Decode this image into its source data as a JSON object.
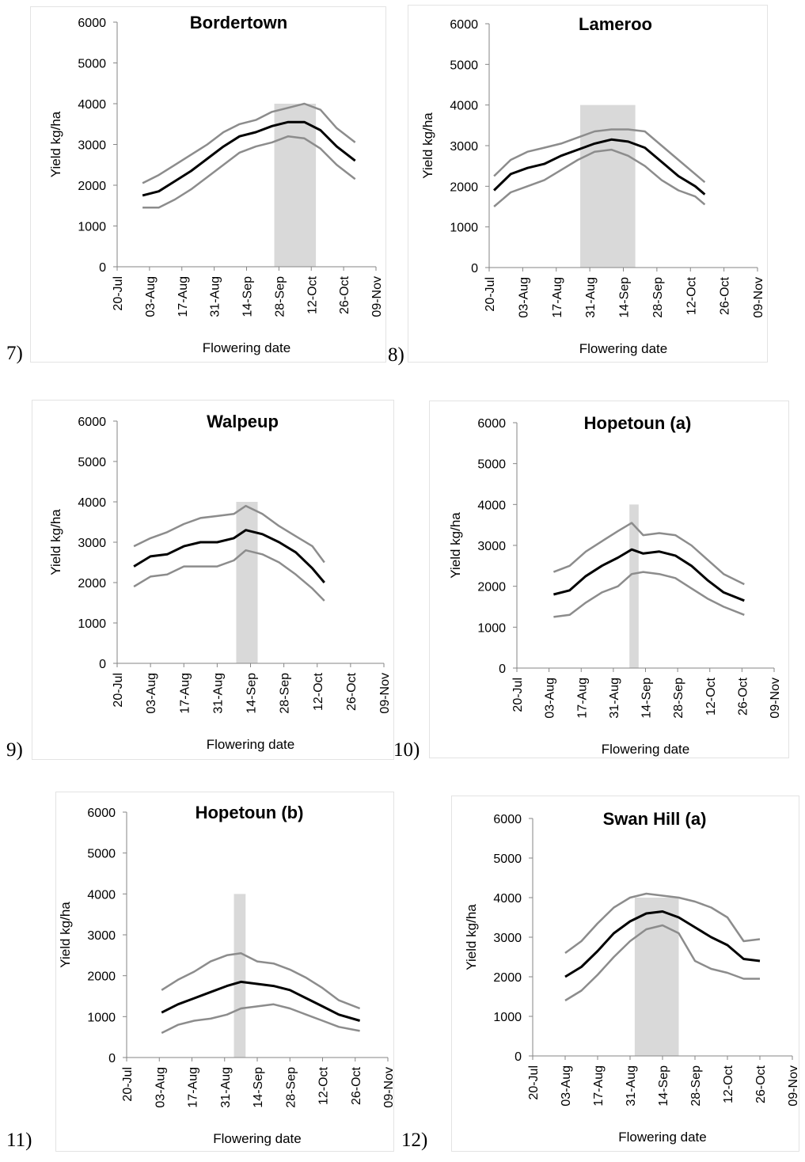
{
  "figure": {
    "colors": {
      "mean": "#000000",
      "bounds": "#8c8c8c",
      "window": "#d9d9d9"
    }
  },
  "chart_data": [
    {
      "type": "line",
      "panel_label": "7)",
      "title": "Bordertown",
      "xlabel": "Flowering date",
      "ylabel": "Yield kg/ha",
      "ylim": [
        0,
        6000
      ],
      "yticks": [
        0,
        1000,
        2000,
        3000,
        4000,
        5000,
        6000
      ],
      "xticks": [
        "20-Jul",
        "03-Aug",
        "17-Aug",
        "31-Aug",
        "14-Sep",
        "28-Sep",
        "12-Oct",
        "26-Oct",
        "09-Nov"
      ],
      "shaded_window": [
        "2024-09-26",
        "2024-10-14"
      ],
      "series": [
        {
          "role": "upper",
          "x": [
            "2024-07-31",
            "2024-08-07",
            "2024-08-14",
            "2024-08-21",
            "2024-08-28",
            "2024-09-04",
            "2024-09-11",
            "2024-09-18",
            "2024-09-25",
            "2024-10-02",
            "2024-10-09",
            "2024-10-16",
            "2024-10-23",
            "2024-10-31"
          ],
          "values": [
            2050,
            2250,
            2500,
            2750,
            3000,
            3300,
            3500,
            3600,
            3800,
            3900,
            4000,
            3850,
            3400,
            3050
          ]
        },
        {
          "role": "mean",
          "x": [
            "2024-07-31",
            "2024-08-07",
            "2024-08-14",
            "2024-08-21",
            "2024-08-28",
            "2024-09-04",
            "2024-09-11",
            "2024-09-18",
            "2024-09-25",
            "2024-10-02",
            "2024-10-09",
            "2024-10-16",
            "2024-10-23",
            "2024-10-31"
          ],
          "values": [
            1750,
            1850,
            2100,
            2350,
            2650,
            2950,
            3200,
            3300,
            3450,
            3550,
            3550,
            3350,
            2950,
            2600
          ]
        },
        {
          "role": "lower",
          "x": [
            "2024-07-31",
            "2024-08-07",
            "2024-08-14",
            "2024-08-21",
            "2024-08-28",
            "2024-09-04",
            "2024-09-11",
            "2024-09-18",
            "2024-09-25",
            "2024-10-02",
            "2024-10-09",
            "2024-10-16",
            "2024-10-23",
            "2024-10-31"
          ],
          "values": [
            1450,
            1450,
            1650,
            1900,
            2200,
            2500,
            2800,
            2950,
            3050,
            3200,
            3150,
            2900,
            2500,
            2150
          ]
        }
      ]
    },
    {
      "type": "line",
      "panel_label": "8)",
      "title": "Lameroo",
      "xlabel": "Flowering date",
      "ylabel": "Yield kg/ha",
      "ylim": [
        0,
        6000
      ],
      "yticks": [
        0,
        1000,
        2000,
        3000,
        4000,
        5000,
        6000
      ],
      "xticks": [
        "20-Jul",
        "03-Aug",
        "17-Aug",
        "31-Aug",
        "14-Sep",
        "28-Sep",
        "12-Oct",
        "26-Oct",
        "09-Nov"
      ],
      "shaded_window": [
        "2024-08-27",
        "2024-09-19"
      ],
      "series": [
        {
          "role": "upper",
          "x": [
            "2024-07-22",
            "2024-07-29",
            "2024-08-05",
            "2024-08-12",
            "2024-08-19",
            "2024-08-26",
            "2024-09-02",
            "2024-09-09",
            "2024-09-16",
            "2024-09-23",
            "2024-09-30",
            "2024-10-07",
            "2024-10-14",
            "2024-10-18"
          ],
          "values": [
            2250,
            2650,
            2850,
            2950,
            3050,
            3200,
            3350,
            3400,
            3400,
            3350,
            3000,
            2650,
            2300,
            2100
          ]
        },
        {
          "role": "mean",
          "x": [
            "2024-07-22",
            "2024-07-29",
            "2024-08-05",
            "2024-08-12",
            "2024-08-19",
            "2024-08-26",
            "2024-09-02",
            "2024-09-09",
            "2024-09-16",
            "2024-09-23",
            "2024-09-30",
            "2024-10-07",
            "2024-10-14",
            "2024-10-18"
          ],
          "values": [
            1900,
            2300,
            2450,
            2550,
            2750,
            2900,
            3050,
            3150,
            3100,
            2950,
            2600,
            2250,
            2000,
            1800
          ]
        },
        {
          "role": "lower",
          "x": [
            "2024-07-22",
            "2024-07-29",
            "2024-08-05",
            "2024-08-12",
            "2024-08-19",
            "2024-08-26",
            "2024-09-02",
            "2024-09-09",
            "2024-09-16",
            "2024-09-23",
            "2024-09-30",
            "2024-10-07",
            "2024-10-14",
            "2024-10-18"
          ],
          "values": [
            1500,
            1850,
            2000,
            2150,
            2400,
            2650,
            2850,
            2900,
            2750,
            2500,
            2150,
            1900,
            1750,
            1550
          ]
        }
      ]
    },
    {
      "type": "line",
      "panel_label": "9)",
      "title": "Walpeup",
      "xlabel": "Flowering date",
      "ylabel": "Yield kg/ha",
      "ylim": [
        0,
        6000
      ],
      "yticks": [
        0,
        1000,
        2000,
        3000,
        4000,
        5000,
        6000
      ],
      "xticks": [
        "20-Jul",
        "03-Aug",
        "17-Aug",
        "31-Aug",
        "14-Sep",
        "28-Sep",
        "12-Oct",
        "26-Oct",
        "09-Nov"
      ],
      "shaded_window": [
        "2024-09-08",
        "2024-09-17"
      ],
      "series": [
        {
          "role": "upper",
          "x": [
            "2024-07-27",
            "2024-08-03",
            "2024-08-10",
            "2024-08-17",
            "2024-08-24",
            "2024-08-31",
            "2024-09-07",
            "2024-09-12",
            "2024-09-19",
            "2024-09-26",
            "2024-10-03",
            "2024-10-10",
            "2024-10-15"
          ],
          "values": [
            2900,
            3100,
            3250,
            3450,
            3600,
            3650,
            3700,
            3900,
            3700,
            3400,
            3150,
            2900,
            2500
          ]
        },
        {
          "role": "mean",
          "x": [
            "2024-07-27",
            "2024-08-03",
            "2024-08-10",
            "2024-08-17",
            "2024-08-24",
            "2024-08-31",
            "2024-09-07",
            "2024-09-12",
            "2024-09-19",
            "2024-09-26",
            "2024-10-03",
            "2024-10-10",
            "2024-10-15"
          ],
          "values": [
            2400,
            2650,
            2700,
            2900,
            3000,
            3000,
            3100,
            3300,
            3200,
            3000,
            2750,
            2350,
            2000
          ]
        },
        {
          "role": "lower",
          "x": [
            "2024-07-27",
            "2024-08-03",
            "2024-08-10",
            "2024-08-17",
            "2024-08-24",
            "2024-08-31",
            "2024-09-07",
            "2024-09-12",
            "2024-09-19",
            "2024-09-26",
            "2024-10-03",
            "2024-10-10",
            "2024-10-15"
          ],
          "values": [
            1900,
            2150,
            2200,
            2400,
            2400,
            2400,
            2550,
            2800,
            2700,
            2500,
            2200,
            1850,
            1550
          ]
        }
      ]
    },
    {
      "type": "line",
      "panel_label": "10)",
      "title": "Hopetoun (a)",
      "xlabel": "Flowering date",
      "ylabel": "Yield kg/ha",
      "ylim": [
        0,
        6000
      ],
      "yticks": [
        0,
        1000,
        2000,
        3000,
        4000,
        5000,
        6000
      ],
      "xticks": [
        "20-Jul",
        "03-Aug",
        "17-Aug",
        "31-Aug",
        "14-Sep",
        "28-Sep",
        "12-Oct",
        "26-Oct",
        "09-Nov"
      ],
      "shaded_window": [
        "2024-09-07",
        "2024-09-11"
      ],
      "series": [
        {
          "role": "upper",
          "x": [
            "2024-08-05",
            "2024-08-12",
            "2024-08-19",
            "2024-08-26",
            "2024-09-02",
            "2024-09-08",
            "2024-09-13",
            "2024-09-20",
            "2024-09-27",
            "2024-10-04",
            "2024-10-11",
            "2024-10-18",
            "2024-10-27"
          ],
          "values": [
            2350,
            2500,
            2850,
            3100,
            3350,
            3550,
            3250,
            3300,
            3250,
            3000,
            2650,
            2300,
            2050
          ]
        },
        {
          "role": "mean",
          "x": [
            "2024-08-05",
            "2024-08-12",
            "2024-08-19",
            "2024-08-26",
            "2024-09-02",
            "2024-09-08",
            "2024-09-13",
            "2024-09-20",
            "2024-09-27",
            "2024-10-04",
            "2024-10-11",
            "2024-10-18",
            "2024-10-27"
          ],
          "values": [
            1800,
            1900,
            2250,
            2500,
            2700,
            2900,
            2800,
            2850,
            2750,
            2500,
            2150,
            1850,
            1650
          ]
        },
        {
          "role": "lower",
          "x": [
            "2024-08-05",
            "2024-08-12",
            "2024-08-19",
            "2024-08-26",
            "2024-09-02",
            "2024-09-08",
            "2024-09-13",
            "2024-09-20",
            "2024-09-27",
            "2024-10-04",
            "2024-10-11",
            "2024-10-18",
            "2024-10-27"
          ],
          "values": [
            1250,
            1300,
            1600,
            1850,
            2000,
            2300,
            2350,
            2300,
            2200,
            1950,
            1700,
            1500,
            1300
          ]
        }
      ]
    },
    {
      "type": "line",
      "panel_label": "11)",
      "title": "Hopetoun (b)",
      "xlabel": "Flowering date",
      "ylabel": "Yield kg/ha",
      "ylim": [
        0,
        6000
      ],
      "yticks": [
        0,
        1000,
        2000,
        3000,
        4000,
        5000,
        6000
      ],
      "xticks": [
        "20-Jul",
        "03-Aug",
        "17-Aug",
        "31-Aug",
        "14-Sep",
        "28-Sep",
        "12-Oct",
        "26-Oct",
        "09-Nov"
      ],
      "shaded_window": [
        "2024-09-04",
        "2024-09-09"
      ],
      "series": [
        {
          "role": "upper",
          "x": [
            "2024-08-04",
            "2024-08-11",
            "2024-08-18",
            "2024-08-25",
            "2024-09-01",
            "2024-09-07",
            "2024-09-14",
            "2024-09-21",
            "2024-09-28",
            "2024-10-05",
            "2024-10-12",
            "2024-10-19",
            "2024-10-28"
          ],
          "values": [
            1650,
            1900,
            2100,
            2350,
            2500,
            2550,
            2350,
            2300,
            2150,
            1950,
            1700,
            1400,
            1200
          ]
        },
        {
          "role": "mean",
          "x": [
            "2024-08-04",
            "2024-08-11",
            "2024-08-18",
            "2024-08-25",
            "2024-09-01",
            "2024-09-07",
            "2024-09-14",
            "2024-09-21",
            "2024-09-28",
            "2024-10-05",
            "2024-10-12",
            "2024-10-19",
            "2024-10-28"
          ],
          "values": [
            1100,
            1300,
            1450,
            1600,
            1750,
            1850,
            1800,
            1750,
            1650,
            1450,
            1250,
            1050,
            900
          ]
        },
        {
          "role": "lower",
          "x": [
            "2024-08-04",
            "2024-08-11",
            "2024-08-18",
            "2024-08-25",
            "2024-09-01",
            "2024-09-07",
            "2024-09-14",
            "2024-09-21",
            "2024-09-28",
            "2024-10-05",
            "2024-10-12",
            "2024-10-19",
            "2024-10-28"
          ],
          "values": [
            600,
            800,
            900,
            950,
            1050,
            1200,
            1250,
            1300,
            1200,
            1050,
            900,
            750,
            650
          ]
        }
      ]
    },
    {
      "type": "line",
      "panel_label": "12)",
      "title": "Swan Hill (a)",
      "xlabel": "Flowering date",
      "ylabel": "Yield kg/ha",
      "ylim": [
        0,
        6000
      ],
      "yticks": [
        0,
        1000,
        2000,
        3000,
        4000,
        5000,
        6000
      ],
      "xticks": [
        "20-Jul",
        "03-Aug",
        "17-Aug",
        "31-Aug",
        "14-Sep",
        "28-Sep",
        "12-Oct",
        "26-Oct",
        "09-Nov"
      ],
      "shaded_window": [
        "2024-09-02",
        "2024-09-21"
      ],
      "series": [
        {
          "role": "upper",
          "x": [
            "2024-08-03",
            "2024-08-10",
            "2024-08-17",
            "2024-08-24",
            "2024-08-31",
            "2024-09-07",
            "2024-09-14",
            "2024-09-21",
            "2024-09-28",
            "2024-10-05",
            "2024-10-12",
            "2024-10-19",
            "2024-10-26"
          ],
          "values": [
            2600,
            2900,
            3350,
            3750,
            4000,
            4100,
            4050,
            4000,
            3900,
            3750,
            3500,
            2900,
            2950
          ]
        },
        {
          "role": "mean",
          "x": [
            "2024-08-03",
            "2024-08-10",
            "2024-08-17",
            "2024-08-24",
            "2024-08-31",
            "2024-09-07",
            "2024-09-14",
            "2024-09-21",
            "2024-09-28",
            "2024-10-05",
            "2024-10-12",
            "2024-10-19",
            "2024-10-26"
          ],
          "values": [
            2000,
            2250,
            2650,
            3100,
            3400,
            3600,
            3650,
            3500,
            3250,
            3000,
            2800,
            2450,
            2400
          ]
        },
        {
          "role": "lower",
          "x": [
            "2024-08-03",
            "2024-08-10",
            "2024-08-17",
            "2024-08-24",
            "2024-08-31",
            "2024-09-07",
            "2024-09-14",
            "2024-09-21",
            "2024-09-28",
            "2024-10-05",
            "2024-10-12",
            "2024-10-19",
            "2024-10-26"
          ],
          "values": [
            1400,
            1650,
            2050,
            2500,
            2900,
            3200,
            3300,
            3100,
            2400,
            2200,
            2100,
            1950,
            1950
          ]
        }
      ]
    }
  ]
}
